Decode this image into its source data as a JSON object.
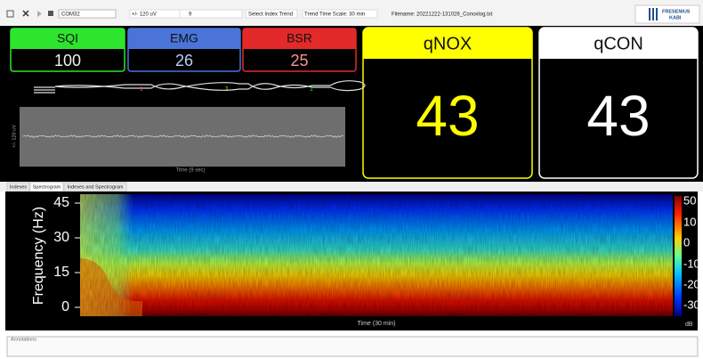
{
  "toolbar": {
    "port": "COM32",
    "amplitude": "+/- 120 uV",
    "setting": "9",
    "index_trend": "Select Index Trend",
    "time_scale": "Trend Time Scale: 30 min",
    "filename": "Filename: 20221222-131026_Conoxlog.txt",
    "logo": [
      "FRESENIUS",
      "KABI"
    ]
  },
  "indices": [
    {
      "label": "SQI",
      "value": 100
    },
    {
      "label": "EMG",
      "value": 26
    },
    {
      "label": "BSR",
      "value": 25
    }
  ],
  "main_indices": [
    {
      "label": "qNOX",
      "value": 43
    },
    {
      "label": "qCON",
      "value": 43
    }
  ],
  "electrodes": [
    "1",
    "1",
    "1"
  ],
  "eeg": {
    "amplitude_label": "+/- 120 uV",
    "x_label": "Time (9 sec)"
  },
  "tabs": [
    "Indexes",
    "Spectrogram",
    "Indexes and Spectrogram"
  ],
  "spectrogram": {
    "y_label": "Frequency (Hz)",
    "y_ticks": [
      45,
      30,
      15,
      0
    ],
    "colorbar_ticks": [
      50,
      10,
      0,
      -10,
      -20,
      -30
    ],
    "colorbar_unit": "dB",
    "x_label": "Time (30 min)"
  },
  "annotations": "Annotations"
}
